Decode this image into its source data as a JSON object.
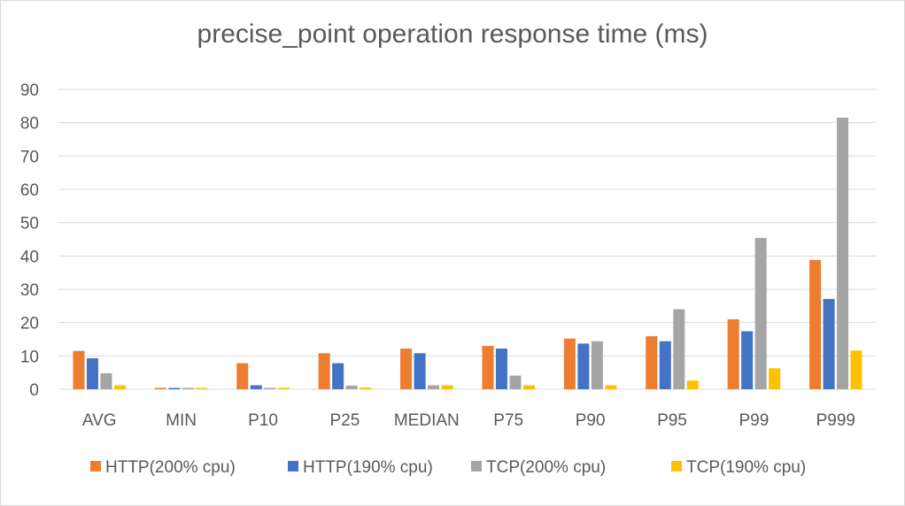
{
  "chart_data": {
    "type": "bar",
    "title": "precise_point operation response time (ms)",
    "categories": [
      "AVG",
      "MIN",
      "P10",
      "P25",
      "MEDIAN",
      "P75",
      "P90",
      "P95",
      "P99",
      "P999"
    ],
    "series": [
      {
        "name": "HTTP(200% cpu)",
        "color": "#ED7D31",
        "values": [
          11.5,
          0.4,
          7.8,
          10.8,
          12.2,
          13.0,
          15.2,
          15.9,
          21.0,
          38.8
        ]
      },
      {
        "name": "HTTP(190% cpu)",
        "color": "#4472C4",
        "values": [
          9.3,
          0.4,
          1.2,
          7.8,
          10.8,
          12.2,
          13.7,
          14.4,
          17.4,
          27.1
        ]
      },
      {
        "name": "TCP(200% cpu)",
        "color": "#A5A5A5",
        "values": [
          4.8,
          0.4,
          0.4,
          1.1,
          1.2,
          4.1,
          14.4,
          24.0,
          45.4,
          81.5
        ]
      },
      {
        "name": "TCP(190% cpu)",
        "color": "#FFC000",
        "values": [
          1.2,
          0.4,
          0.4,
          0.5,
          1.2,
          1.2,
          1.2,
          2.6,
          6.3,
          11.6
        ]
      }
    ],
    "xlabel": "",
    "ylabel": "",
    "ylim": [
      0,
      90
    ],
    "yticks": [
      0,
      10,
      20,
      30,
      40,
      50,
      60,
      70,
      80,
      90
    ],
    "grid": true,
    "legend_position": "bottom"
  }
}
